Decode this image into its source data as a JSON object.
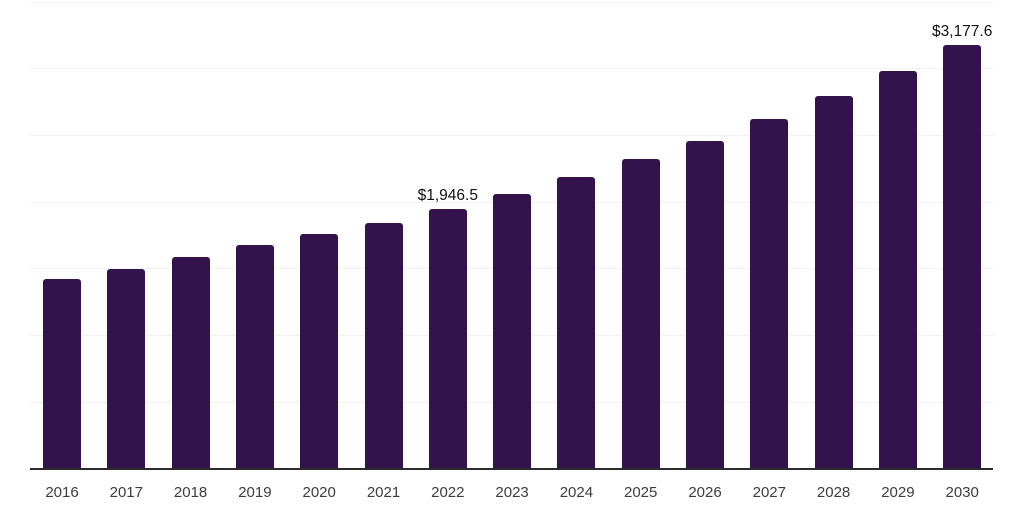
{
  "chart_data": {
    "type": "bar",
    "title": "",
    "xlabel": "",
    "ylabel": "",
    "legend": false,
    "grid": "horizontal",
    "ylim": [
      0,
      3500
    ],
    "gridline_interval": 500,
    "y_tick_labels_visible": false,
    "categories": [
      "2016",
      "2017",
      "2018",
      "2019",
      "2020",
      "2021",
      "2022",
      "2023",
      "2024",
      "2025",
      "2026",
      "2027",
      "2028",
      "2029",
      "2030"
    ],
    "values": [
      1426,
      1502,
      1591,
      1677,
      1759,
      1841,
      1946.5,
      2059,
      2186,
      2321,
      2461,
      2621,
      2793,
      2981,
      3177.6
    ],
    "annotations": [
      {
        "category": "2022",
        "text": "$1,946.5"
      },
      {
        "category": "2030",
        "text": "$3,177.6"
      }
    ],
    "colors": {
      "bar": "#34134D",
      "gridline": "#f2f2f2",
      "axis_line": "#2a2a2a",
      "x_tick_label": "#3c3c3c",
      "data_label": "#111111",
      "background": "#ffffff"
    }
  }
}
